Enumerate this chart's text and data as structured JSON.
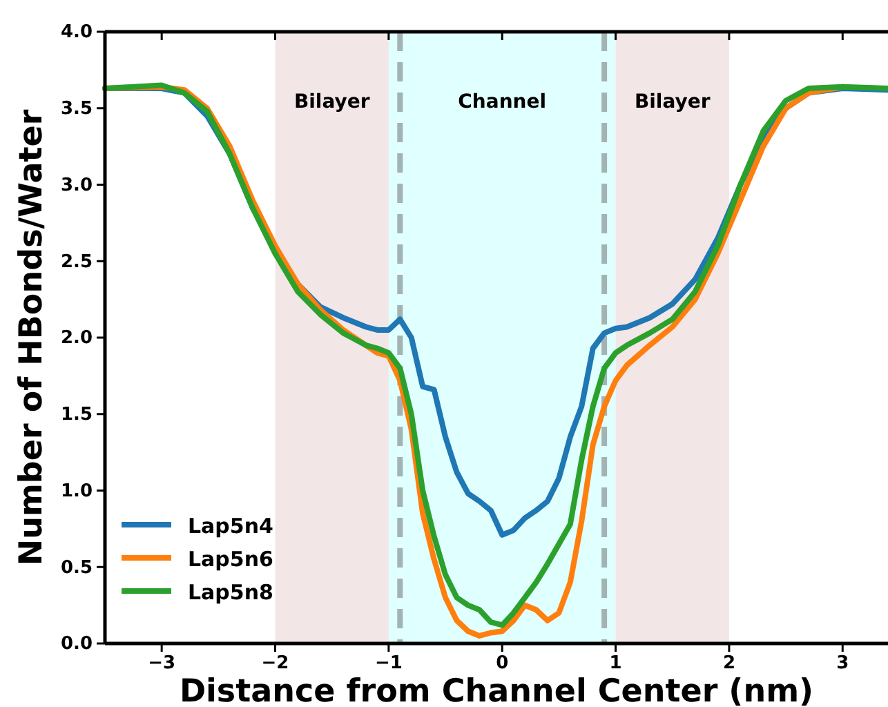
{
  "chart_data": {
    "type": "line",
    "xlabel": "Distance from Channel Center (nm)",
    "ylabel": "Number of HBonds/Water",
    "xlim": [
      -3.5,
      3.4
    ],
    "xticks": [
      -3,
      -2,
      -1,
      0,
      1,
      2,
      3
    ],
    "ylim": [
      0,
      4
    ],
    "yticks": [
      {
        "value": 0,
        "label": "0.0"
      },
      {
        "value": 0.5,
        "label": "0.5"
      },
      {
        "value": 1,
        "label": "1.0"
      },
      {
        "value": 1.5,
        "label": "1.5"
      },
      {
        "value": 2,
        "label": "2.0"
      },
      {
        "value": 2.5,
        "label": "2.5"
      },
      {
        "value": 3,
        "label": "3.0"
      },
      {
        "value": 3.5,
        "label": "3.5"
      },
      {
        "value": 4,
        "label": "4.0"
      }
    ],
    "x": [
      -3.5,
      -3.0,
      -2.8,
      -2.6,
      -2.4,
      -2.2,
      -2.0,
      -1.8,
      -1.6,
      -1.4,
      -1.2,
      -1.1,
      -1.0,
      -0.9,
      -0.8,
      -0.7,
      -0.6,
      -0.5,
      -0.4,
      -0.3,
      -0.2,
      -0.1,
      0.0,
      0.1,
      0.2,
      0.3,
      0.4,
      0.5,
      0.6,
      0.7,
      0.8,
      0.9,
      1.0,
      1.1,
      1.3,
      1.5,
      1.7,
      1.9,
      2.1,
      2.3,
      2.5,
      2.7,
      3.0,
      3.4
    ],
    "series": [
      {
        "name": "Lap5n4",
        "color": "#1f77b4",
        "values": [
          3.63,
          3.63,
          3.6,
          3.45,
          3.2,
          2.85,
          2.58,
          2.35,
          2.2,
          2.13,
          2.07,
          2.05,
          2.05,
          2.12,
          2.0,
          1.68,
          1.66,
          1.35,
          1.12,
          0.98,
          0.93,
          0.87,
          0.71,
          0.74,
          0.82,
          0.87,
          0.93,
          1.08,
          1.35,
          1.55,
          1.93,
          2.03,
          2.06,
          2.07,
          2.13,
          2.22,
          2.38,
          2.65,
          3.0,
          3.3,
          3.5,
          3.6,
          3.63,
          3.62
        ]
      },
      {
        "name": "Lap5n6",
        "color": "#ff7f0e",
        "values": [
          3.63,
          3.64,
          3.62,
          3.5,
          3.25,
          2.9,
          2.6,
          2.35,
          2.18,
          2.05,
          1.95,
          1.9,
          1.88,
          1.72,
          1.4,
          0.85,
          0.55,
          0.3,
          0.15,
          0.08,
          0.05,
          0.07,
          0.08,
          0.15,
          0.25,
          0.22,
          0.15,
          0.2,
          0.4,
          0.8,
          1.3,
          1.55,
          1.72,
          1.82,
          1.95,
          2.07,
          2.25,
          2.55,
          2.9,
          3.25,
          3.5,
          3.6,
          3.64,
          null
        ]
      },
      {
        "name": "Lap5n8",
        "color": "#2ca02c",
        "values": [
          3.63,
          3.65,
          3.6,
          3.48,
          3.2,
          2.85,
          2.55,
          2.3,
          2.15,
          2.03,
          1.95,
          1.93,
          1.9,
          1.8,
          1.5,
          1.0,
          0.7,
          0.45,
          0.3,
          0.25,
          0.22,
          0.14,
          0.12,
          0.2,
          0.3,
          0.4,
          0.52,
          0.65,
          0.78,
          1.2,
          1.55,
          1.8,
          1.9,
          1.95,
          2.03,
          2.12,
          2.3,
          2.6,
          3.0,
          3.35,
          3.55,
          3.63,
          3.64,
          3.63
        ]
      }
    ],
    "bands": [
      {
        "axis": "x",
        "from": -2,
        "to": -1,
        "label": "Bilayer",
        "color": "#f2e6e6"
      },
      {
        "axis": "x",
        "from": -1,
        "to": 1,
        "label": "Channel",
        "color": "#e0ffff"
      },
      {
        "axis": "x",
        "from": 1,
        "to": 2,
        "label": "Bilayer",
        "color": "#f2e6e6"
      }
    ],
    "ref_lines": [
      {
        "axis": "x",
        "value": -0.9,
        "color": "#a3b3b3",
        "line_style": "dashed"
      },
      {
        "axis": "x",
        "value": 0.9,
        "color": "#a3b3b3",
        "line_style": "dashed"
      }
    ],
    "legend": "bottom left",
    "grid": false,
    "marker": "none",
    "line_style": "solid"
  }
}
